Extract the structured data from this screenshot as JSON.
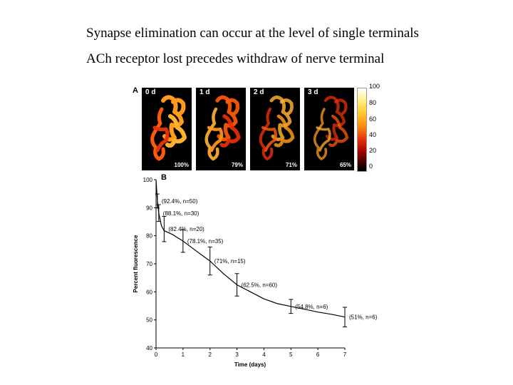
{
  "slide": {
    "line1": "Synapse elimination can occur at the level of single terminals",
    "line2": "ACh receptor lost precedes withdraw of nerve terminal"
  },
  "panel_a": {
    "label": "A",
    "images": [
      {
        "day": "0 d",
        "percent": "100%"
      },
      {
        "day": "1 d",
        "percent": "79%"
      },
      {
        "day": "2 d",
        "percent": "71%"
      },
      {
        "day": "3 d",
        "percent": "65%"
      }
    ],
    "colorbar_ticks": [
      "100",
      "80",
      "60",
      "40",
      "20",
      "0"
    ],
    "colormap": [
      "#ffffff",
      "#fff59a",
      "#ffcc33",
      "#ff8a10",
      "#e63008",
      "#9a0000",
      "#000000"
    ]
  },
  "chart_data": {
    "type": "line",
    "panel_label": "B",
    "xlabel": "Time (days)",
    "ylabel": "Percent fluorescence",
    "xlim": [
      0,
      7
    ],
    "ylim": [
      40,
      100
    ],
    "x_ticks": [
      "0",
      "1",
      "2",
      "3",
      "4",
      "5",
      "6",
      "7"
    ],
    "y_ticks": [
      "100",
      "90",
      "80",
      "70",
      "60",
      "50",
      "40"
    ],
    "curve_x": [
      0,
      0.05,
      0.1,
      0.2,
      0.3,
      0.6,
      1,
      1.5,
      2,
      2.5,
      3,
      3.5,
      4,
      4.5,
      5,
      5.5,
      6,
      6.5,
      7
    ],
    "curve_y": [
      100,
      92.4,
      88.1,
      83.5,
      81.8,
      80.5,
      78.1,
      74.5,
      71,
      66.5,
      62.5,
      60,
      57.5,
      55.8,
      54.8,
      53.8,
      52.8,
      52,
      51
    ],
    "points": [
      {
        "x": 0.05,
        "y": 92.4,
        "err": 2.5,
        "label": "(92.4%, n=50)"
      },
      {
        "x": 0.1,
        "y": 88.1,
        "err": 3,
        "label": "(88.1%, n=30)"
      },
      {
        "x": 0.3,
        "y": 82.4,
        "err": 4.5,
        "label": "(82.4%, n=20)"
      },
      {
        "x": 1,
        "y": 78.1,
        "err": 4,
        "label": "(78.1%, n=35)"
      },
      {
        "x": 2,
        "y": 71,
        "err": 5,
        "label": "(71%, n=15)"
      },
      {
        "x": 3,
        "y": 62.5,
        "err": 4,
        "label": "(62.5%, n=60)"
      },
      {
        "x": 5,
        "y": 54.8,
        "err": 2.5,
        "label": "(54.8%, n=6)"
      },
      {
        "x": 7,
        "y": 51,
        "err": 3.5,
        "label": "(51%, n=6)"
      }
    ]
  }
}
